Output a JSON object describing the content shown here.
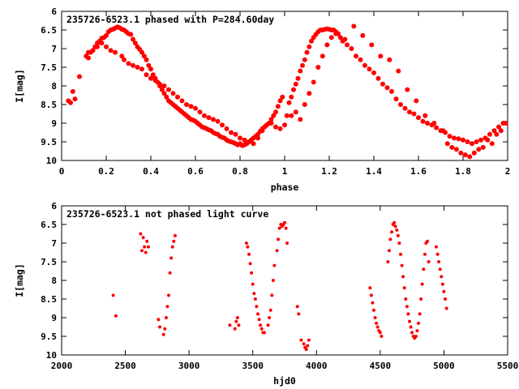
{
  "colors": {
    "marker": "#ff0000",
    "axis": "#000000",
    "background": "#ffffff"
  },
  "chart_data": [
    {
      "type": "scatter",
      "title": "235726-6523.1 phased with P=284.60day",
      "xlabel": "phase",
      "ylabel": "I[mag]",
      "xlim": [
        0,
        2
      ],
      "ylim": [
        10,
        6
      ],
      "y_inverted": true,
      "grid": false,
      "legend": "none",
      "xticks": [
        "0",
        "0.2",
        "0.4",
        "0.6",
        "0.8",
        "1",
        "1.2",
        "1.4",
        "1.6",
        "1.8",
        "2"
      ],
      "yticks": [
        "6",
        "6.5",
        "7",
        "7.5",
        "8",
        "8.5",
        "9",
        "9.5",
        "10"
      ],
      "series": [
        {
          "points_x": [
            0.03,
            0.04,
            0.05,
            0.06,
            0.08,
            0.11,
            0.12,
            0.13,
            0.14,
            0.15,
            0.16,
            0.17,
            0.18,
            0.19,
            0.2,
            0.21,
            0.22,
            0.23,
            0.24,
            0.25,
            0.26,
            0.27,
            0.28,
            0.29,
            0.3,
            0.31,
            0.32,
            0.33,
            0.34,
            0.35,
            0.36,
            0.37,
            0.38,
            0.39,
            0.4,
            0.41,
            0.42,
            0.43,
            0.44,
            0.45,
            0.46,
            0.47,
            0.48,
            0.49,
            0.5,
            0.51,
            0.52,
            0.53,
            0.54,
            0.55,
            0.56,
            0.57,
            0.58,
            0.59,
            0.6,
            0.61,
            0.62,
            0.63,
            0.64,
            0.65,
            0.66,
            0.67,
            0.68,
            0.69,
            0.7,
            0.71,
            0.72,
            0.73,
            0.74,
            0.75,
            0.76,
            0.77,
            0.78,
            0.79,
            0.8,
            0.81,
            0.82,
            0.83,
            0.84,
            0.85,
            0.86,
            0.87,
            0.88,
            0.89,
            0.9,
            0.91,
            0.92,
            0.93,
            0.94,
            0.95,
            0.96,
            0.97,
            0.98,
            0.99,
            0.12,
            0.14,
            0.16,
            0.18,
            0.2,
            0.22,
            0.24,
            0.27,
            0.28,
            0.3,
            0.32,
            0.34,
            0.36,
            0.38,
            0.4,
            0.42,
            0.44,
            0.46,
            0.48,
            0.5,
            0.52,
            0.54,
            0.56,
            0.58,
            0.6,
            0.62,
            0.64,
            0.66,
            0.68,
            0.7,
            0.72,
            0.74,
            0.76,
            0.78,
            0.8,
            0.82,
            0.84,
            0.86,
            0.88,
            0.9,
            0.92,
            0.94,
            0.96,
            0.98,
            1.0,
            1.01,
            1.02,
            1.03,
            1.04,
            1.05,
            1.06,
            1.07,
            1.08,
            1.09,
            1.1,
            1.11,
            1.12,
            1.13,
            1.14,
            1.15,
            1.16,
            1.17,
            1.18,
            1.19,
            1.2,
            1.21,
            1.22,
            1.23,
            1.24,
            1.25,
            1.26,
            1.28,
            1.3,
            1.32,
            1.34,
            1.36,
            1.38,
            1.4,
            1.42,
            1.44,
            1.46,
            1.48,
            1.5,
            1.52,
            1.54,
            1.56,
            1.58,
            1.6,
            1.62,
            1.64,
            1.66,
            1.68,
            1.7,
            1.72,
            1.74,
            1.76,
            1.78,
            1.8,
            1.82,
            1.84,
            1.86,
            1.88,
            1.9,
            1.92,
            1.94,
            1.96,
            1.98,
            1.03,
            1.05,
            1.07,
            1.09,
            1.11,
            1.13,
            1.15,
            1.17,
            1.19,
            1.21,
            1.23,
            1.27,
            1.31,
            1.35,
            1.39,
            1.43,
            1.47,
            1.51,
            1.55,
            1.59,
            1.63,
            1.67,
            1.71,
            1.73,
            1.75,
            1.77,
            1.79,
            1.81,
            1.83,
            1.85,
            1.87,
            1.89,
            1.91,
            1.93,
            1.95,
            1.97,
            1.99
          ],
          "points_y": [
            8.4,
            8.45,
            8.15,
            8.35,
            7.75,
            7.2,
            7.25,
            7.1,
            7.05,
            6.95,
            6.85,
            6.8,
            6.72,
            6.7,
            6.65,
            6.55,
            6.5,
            6.48,
            6.45,
            6.42,
            6.44,
            6.48,
            6.5,
            6.55,
            6.6,
            6.62,
            6.75,
            6.85,
            6.95,
            7.02,
            7.1,
            7.2,
            7.3,
            7.45,
            7.55,
            7.7,
            7.8,
            7.9,
            8.0,
            8.1,
            8.2,
            8.3,
            8.4,
            8.45,
            8.5,
            8.55,
            8.6,
            8.65,
            8.7,
            8.75,
            8.8,
            8.85,
            8.9,
            8.92,
            8.95,
            9.0,
            9.05,
            9.1,
            9.12,
            9.15,
            9.18,
            9.2,
            9.25,
            9.28,
            9.3,
            9.35,
            9.38,
            9.4,
            9.45,
            9.48,
            9.5,
            9.52,
            9.55,
            9.58,
            9.55,
            9.6,
            9.58,
            9.55,
            9.5,
            9.45,
            9.4,
            9.35,
            9.3,
            9.22,
            9.15,
            9.1,
            9.05,
            9.0,
            8.9,
            8.8,
            8.7,
            8.55,
            8.4,
            8.3,
            7.1,
            7.05,
            6.95,
            6.85,
            6.95,
            7.05,
            7.1,
            7.2,
            7.3,
            7.4,
            7.45,
            7.5,
            7.55,
            7.7,
            7.8,
            7.85,
            7.95,
            8.0,
            8.1,
            8.2,
            8.3,
            8.4,
            8.5,
            8.55,
            8.6,
            8.7,
            8.8,
            8.85,
            8.9,
            8.95,
            9.05,
            9.15,
            9.25,
            9.3,
            9.4,
            9.45,
            9.5,
            9.55,
            9.4,
            9.2,
            9.05,
            9.0,
            9.1,
            9.15,
            9.05,
            8.8,
            8.45,
            8.3,
            8.1,
            7.95,
            7.8,
            7.6,
            7.45,
            7.3,
            7.1,
            6.95,
            6.8,
            6.7,
            6.62,
            6.55,
            6.5,
            6.5,
            6.48,
            6.47,
            6.48,
            6.5,
            6.5,
            6.55,
            6.6,
            6.7,
            6.8,
            6.9,
            7.0,
            7.2,
            7.3,
            7.45,
            7.55,
            7.65,
            7.8,
            7.95,
            8.05,
            8.15,
            8.35,
            8.5,
            8.6,
            8.7,
            8.75,
            8.85,
            8.95,
            9.0,
            9.05,
            9.12,
            9.2,
            9.25,
            9.35,
            9.4,
            9.42,
            9.45,
            9.5,
            9.55,
            9.5,
            9.45,
            9.4,
            9.3,
            9.2,
            9.1,
            9.0,
            8.8,
            8.7,
            8.9,
            8.5,
            8.2,
            7.9,
            7.5,
            7.2,
            6.9,
            6.7,
            6.6,
            6.75,
            6.4,
            6.65,
            6.9,
            7.2,
            7.3,
            7.6,
            8.1,
            8.4,
            8.8,
            9.0,
            9.2,
            9.55,
            9.65,
            9.7,
            9.8,
            9.85,
            9.9,
            9.8,
            9.7,
            9.65,
            9.45,
            9.55,
            9.3,
            9.2,
            9.0
          ]
        }
      ]
    },
    {
      "type": "scatter",
      "title": "235726-6523.1 not phased light curve",
      "xlabel": "hjd0",
      "ylabel": "I[mag]",
      "xlim": [
        2000,
        5500
      ],
      "ylim": [
        10,
        6
      ],
      "y_inverted": true,
      "grid": false,
      "legend": "none",
      "xticks": [
        "2000",
        "2500",
        "3000",
        "3500",
        "4000",
        "4500",
        "5000",
        "5500"
      ],
      "yticks": [
        "6",
        "6.5",
        "7",
        "7.5",
        "8",
        "8.5",
        "9",
        "9.5",
        "10"
      ],
      "series": [
        {
          "points_x": [
            2405,
            2425,
            2620,
            2630,
            2640,
            2650,
            2660,
            2670,
            2680,
            2760,
            2770,
            2800,
            2810,
            2820,
            2830,
            2840,
            2850,
            2860,
            2870,
            2880,
            2890,
            3320,
            3360,
            3370,
            3380,
            3390,
            3450,
            3460,
            3470,
            3480,
            3490,
            3500,
            3510,
            3520,
            3530,
            3540,
            3550,
            3560,
            3570,
            3580,
            3590,
            3620,
            3630,
            3640,
            3650,
            3660,
            3670,
            3690,
            3700,
            3710,
            3720,
            3730,
            3740,
            3750,
            3760,
            3770,
            3850,
            3860,
            3880,
            3900,
            3910,
            3920,
            3930,
            3940,
            4420,
            4430,
            4440,
            4450,
            4460,
            4470,
            4480,
            4490,
            4500,
            4510,
            4560,
            4570,
            4580,
            4590,
            4600,
            4610,
            4620,
            4630,
            4640,
            4650,
            4660,
            4670,
            4680,
            4690,
            4700,
            4710,
            4720,
            4730,
            4740,
            4750,
            4760,
            4770,
            4780,
            4790,
            4800,
            4810,
            4820,
            4830,
            4840,
            4850,
            4860,
            4870,
            4880,
            4940,
            4950,
            4960,
            4970,
            4980,
            4990,
            5000,
            5010,
            5020
          ],
          "points_y": [
            8.4,
            8.95,
            6.75,
            7.2,
            6.85,
            7.1,
            7.25,
            6.95,
            7.1,
            9.05,
            9.25,
            9.45,
            9.3,
            9.0,
            8.7,
            8.4,
            7.8,
            7.4,
            7.1,
            6.95,
            6.8,
            9.2,
            9.3,
            9.1,
            9.0,
            9.2,
            7.0,
            7.1,
            7.3,
            7.55,
            7.8,
            8.1,
            8.35,
            8.5,
            8.7,
            8.9,
            9.05,
            9.2,
            9.3,
            9.4,
            9.4,
            9.2,
            9.0,
            8.8,
            8.4,
            8.0,
            7.6,
            7.2,
            6.9,
            6.6,
            6.5,
            6.55,
            6.5,
            6.45,
            6.6,
            7.0,
            8.7,
            8.9,
            9.6,
            9.7,
            9.8,
            9.85,
            9.75,
            9.6,
            8.2,
            8.4,
            8.6,
            8.8,
            9.0,
            9.15,
            9.25,
            9.35,
            9.4,
            9.5,
            7.5,
            7.2,
            6.9,
            6.7,
            6.5,
            6.45,
            6.55,
            6.65,
            6.8,
            7.0,
            7.3,
            7.6,
            7.9,
            8.2,
            8.5,
            8.7,
            8.9,
            9.1,
            9.25,
            9.4,
            9.5,
            9.55,
            9.5,
            9.35,
            9.15,
            8.9,
            8.5,
            8.1,
            7.7,
            7.3,
            7.0,
            6.95,
            7.5,
            7.1,
            7.3,
            7.5,
            7.7,
            7.9,
            8.1,
            8.3,
            8.5,
            8.75
          ]
        }
      ]
    }
  ]
}
